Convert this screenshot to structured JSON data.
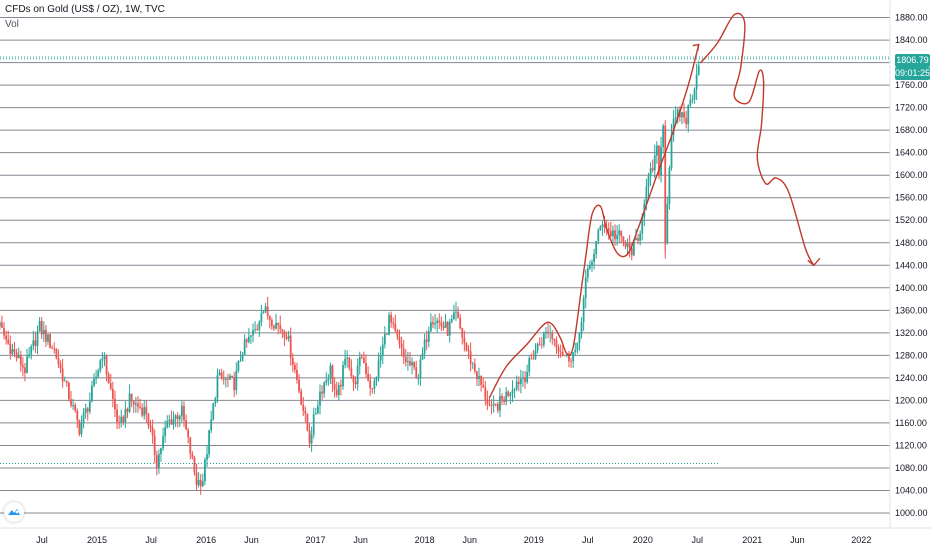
{
  "header": {
    "title": "CFDs on Gold (US$ / OZ), 1W, TVC",
    "volume_label": "Vol"
  },
  "price_scale": {
    "last_price": "1806.79",
    "countdown": "09:01:25"
  },
  "colors": {
    "up": "#26a69a",
    "down": "#ef5350",
    "drawing": "#c0392b",
    "grid": "#787b86",
    "price_tag": "#26a69a",
    "dotted_line": "#26a69a"
  },
  "chart_data": {
    "type": "candlestick",
    "title": "CFDs on Gold (US$ / OZ), 1W, TVC",
    "ylim": [
      1000,
      1880
    ],
    "y_ticks": [
      "1000.00",
      "1040.00",
      "1080.00",
      "1120.00",
      "1160.00",
      "1200.00",
      "1240.00",
      "1280.00",
      "1320.00",
      "1360.00",
      "1400.00",
      "1440.00",
      "1480.00",
      "1520.00",
      "1560.00",
      "1600.00",
      "1640.00",
      "1680.00",
      "1720.00",
      "1760.00",
      "1800.00",
      "1840.00",
      "1880.00"
    ],
    "x_ticks": [
      "Jul",
      "2015",
      "Jul",
      "2016",
      "Jun",
      "2017",
      "Jun",
      "2018",
      "Jun",
      "2019",
      "Jul",
      "2020",
      "Jul",
      "2021",
      "Jun",
      "2022"
    ],
    "x_tick_dates": [
      "2014-07-01",
      "2015-01-01",
      "2015-07-01",
      "2016-01-01",
      "2016-06-01",
      "2017-01-01",
      "2017-06-01",
      "2018-01-01",
      "2018-06-01",
      "2019-01-01",
      "2019-07-01",
      "2020-01-01",
      "2020-07-01",
      "2021-01-01",
      "2021-06-01",
      "2022-01-01"
    ],
    "grid": true,
    "last_price": 1806.79,
    "horizontal_lines": [
      1810,
      1806.79,
      1088
    ],
    "price_path": [
      [
        "2014-01-06",
        1380
      ],
      [
        "2014-01-27",
        1345
      ],
      [
        "2014-03-10",
        1300
      ],
      [
        "2014-05-05",
        1255
      ],
      [
        "2014-06-23",
        1330
      ],
      [
        "2014-08-11",
        1290
      ],
      [
        "2014-09-22",
        1220
      ],
      [
        "2014-11-03",
        1150
      ],
      [
        "2014-12-08",
        1200
      ],
      [
        "2015-01-19",
        1285
      ],
      [
        "2015-03-16",
        1150
      ],
      [
        "2015-04-20",
        1200
      ],
      [
        "2015-06-15",
        1180
      ],
      [
        "2015-07-20",
        1090
      ],
      [
        "2015-08-24",
        1160
      ],
      [
        "2015-10-12",
        1180
      ],
      [
        "2015-11-30",
        1055
      ],
      [
        "2015-12-21",
        1060
      ],
      [
        "2016-02-08",
        1240
      ],
      [
        "2016-04-04",
        1230
      ],
      [
        "2016-05-02",
        1290
      ],
      [
        "2016-06-20",
        1330
      ],
      [
        "2016-07-04",
        1365
      ],
      [
        "2016-08-15",
        1340
      ],
      [
        "2016-09-26",
        1320
      ],
      [
        "2016-11-07",
        1220
      ],
      [
        "2016-12-12",
        1130
      ],
      [
        "2017-01-16",
        1215
      ],
      [
        "2017-02-20",
        1255
      ],
      [
        "2017-03-13",
        1200
      ],
      [
        "2017-04-17",
        1285
      ],
      [
        "2017-05-08",
        1225
      ],
      [
        "2017-06-05",
        1280
      ],
      [
        "2017-07-10",
        1215
      ],
      [
        "2017-09-04",
        1345
      ],
      [
        "2017-10-23",
        1275
      ],
      [
        "2017-12-11",
        1245
      ],
      [
        "2018-01-22",
        1350
      ],
      [
        "2018-03-19",
        1325
      ],
      [
        "2018-04-16",
        1350
      ],
      [
        "2018-05-21",
        1290
      ],
      [
        "2018-06-25",
        1245
      ],
      [
        "2018-08-13",
        1180
      ],
      [
        "2018-09-17",
        1200
      ],
      [
        "2018-10-29",
        1230
      ],
      [
        "2018-12-03",
        1245
      ],
      [
        "2019-01-07",
        1290
      ],
      [
        "2019-02-18",
        1325
      ],
      [
        "2019-04-22",
        1275
      ],
      [
        "2019-05-27",
        1290
      ],
      [
        "2019-06-24",
        1410
      ],
      [
        "2019-08-19",
        1520
      ],
      [
        "2019-09-09",
        1500
      ],
      [
        "2019-10-14",
        1490
      ],
      [
        "2019-11-18",
        1465
      ],
      [
        "2019-12-16",
        1480
      ],
      [
        "2020-01-06",
        1560
      ],
      [
        "2020-02-17",
        1640
      ],
      [
        "2020-02-24",
        1610
      ],
      [
        "2020-03-09",
        1690
      ],
      [
        "2020-03-16",
        1490
      ],
      [
        "2020-04-06",
        1680
      ],
      [
        "2020-05-04",
        1710
      ],
      [
        "2020-05-25",
        1700
      ],
      [
        "2020-06-08",
        1730
      ],
      [
        "2020-06-29",
        1780
      ],
      [
        "2020-07-06",
        1806.79
      ]
    ],
    "drawing": {
      "kind": "hand-drawn forecast path",
      "points": [
        [
          "2018-08-06",
          1205
        ],
        [
          "2018-10-01",
          1260
        ],
        [
          "2018-12-10",
          1300
        ],
        [
          "2019-02-04",
          1335
        ],
        [
          "2019-03-04",
          1335
        ],
        [
          "2019-04-01",
          1310
        ],
        [
          "2019-04-22",
          1283
        ],
        [
          "2019-05-13",
          1295
        ],
        [
          "2019-06-10",
          1400
        ],
        [
          "2019-06-24",
          1455
        ],
        [
          "2019-07-15",
          1530
        ],
        [
          "2019-08-12",
          1545
        ],
        [
          "2019-09-02",
          1505
        ],
        [
          "2019-10-07",
          1462
        ],
        [
          "2019-11-11",
          1460
        ],
        [
          "2019-12-16",
          1505
        ],
        [
          "2020-02-17",
          1600
        ],
        [
          "2020-04-13",
          1680
        ],
        [
          "2020-06-01",
          1760
        ],
        [
          "2020-07-06",
          1832
        ]
      ],
      "future_path": [
        [
          "2020-07-13",
          1800
        ],
        [
          "2020-09-07",
          1835
        ],
        [
          "2020-11-02",
          1885
        ],
        [
          "2020-12-07",
          1870
        ],
        [
          "2020-11-23",
          1790
        ],
        [
          "2020-11-02",
          1740
        ],
        [
          "2020-12-21",
          1730
        ],
        [
          "2021-01-25",
          1785
        ],
        [
          "2021-02-08",
          1765
        ],
        [
          "2021-02-01",
          1690
        ],
        [
          "2021-01-18",
          1630
        ],
        [
          "2021-02-15",
          1585
        ],
        [
          "2021-03-22",
          1595
        ],
        [
          "2021-05-03",
          1570
        ],
        [
          "2021-06-28",
          1470
        ],
        [
          "2021-07-26",
          1440
        ]
      ]
    }
  }
}
